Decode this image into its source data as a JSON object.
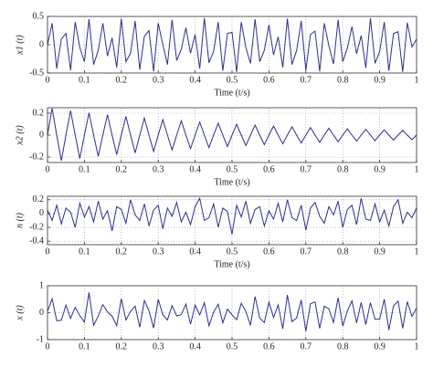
{
  "chart_data": [
    {
      "type": "line",
      "ylabel": "x1 (t)",
      "xlabel": "Time (t/s)",
      "color": "#2e2e8f",
      "grid": true,
      "xlim": [
        0,
        1
      ],
      "xticks": [
        0,
        0.1,
        0.2,
        0.3,
        0.4,
        0.5,
        0.6,
        0.7,
        0.8,
        0.9,
        1
      ],
      "ylim": [
        -0.5,
        0.5
      ],
      "yticks": [
        -0.5,
        0,
        0.5
      ],
      "x": [
        0,
        0.0125,
        0.025,
        0.0375,
        0.05,
        0.0625,
        0.075,
        0.0875,
        0.1,
        0.1125,
        0.125,
        0.1375,
        0.15,
        0.1625,
        0.175,
        0.1875,
        0.2,
        0.2125,
        0.225,
        0.2375,
        0.25,
        0.2625,
        0.275,
        0.2875,
        0.3,
        0.3125,
        0.325,
        0.3375,
        0.35,
        0.3625,
        0.375,
        0.3875,
        0.4,
        0.4125,
        0.425,
        0.4375,
        0.45,
        0.4625,
        0.475,
        0.4875,
        0.5,
        0.5125,
        0.525,
        0.5375,
        0.55,
        0.5625,
        0.575,
        0.5875,
        0.6,
        0.6125,
        0.625,
        0.6375,
        0.65,
        0.6625,
        0.675,
        0.6875,
        0.7,
        0.7125,
        0.725,
        0.7375,
        0.75,
        0.7625,
        0.775,
        0.7875,
        0.8,
        0.8125,
        0.825,
        0.8375,
        0.85,
        0.8625,
        0.875,
        0.8875,
        0.9,
        0.9125,
        0.925,
        0.9375,
        0.95,
        0.9625,
        0.975,
        0.9875,
        1
      ],
      "values": [
        0,
        0.38,
        -0.42,
        0.1,
        0.2,
        -0.45,
        0.4,
        -0.05,
        -0.3,
        0.45,
        -0.35,
        -0.1,
        0.38,
        -0.2,
        0.12,
        -0.4,
        0.46,
        -0.3,
        -0.15,
        0.42,
        -0.44,
        0.15,
        0.25,
        -0.47,
        0.38,
        0,
        -0.35,
        0.44,
        -0.28,
        -0.08,
        0.3,
        -0.15,
        0.18,
        -0.42,
        0.47,
        -0.32,
        -0.12,
        0.4,
        -0.46,
        0.2,
        0.22,
        -0.48,
        0.4,
        -0.05,
        -0.33,
        0.45,
        -0.3,
        -0.1,
        0.35,
        -0.18,
        0.14,
        -0.4,
        0.46,
        -0.35,
        -0.1,
        0.42,
        -0.45,
        0.18,
        0.24,
        -0.47,
        0.38,
        -0.02,
        -0.34,
        0.44,
        -0.3,
        -0.06,
        0.32,
        -0.16,
        0.16,
        -0.41,
        0.47,
        -0.33,
        -0.12,
        0.4,
        -0.46,
        0.2,
        0.23,
        -0.48,
        0.39,
        -0.04,
        0.1
      ]
    },
    {
      "type": "line",
      "ylabel": "x2 (t)",
      "xlabel": "Time (t/s)",
      "color": "#2e2e8f",
      "grid": true,
      "xlim": [
        0,
        1
      ],
      "xticks": [
        0,
        0.1,
        0.2,
        0.3,
        0.4,
        0.5,
        0.6,
        0.7,
        0.8,
        0.9,
        1
      ],
      "ylim": [
        -0.25,
        0.25
      ],
      "yticks": [
        -0.2,
        0,
        0.2
      ],
      "x": [
        0,
        0.0125,
        0.025,
        0.0375,
        0.05,
        0.0625,
        0.075,
        0.0875,
        0.1,
        0.1125,
        0.125,
        0.1375,
        0.15,
        0.1625,
        0.175,
        0.1875,
        0.2,
        0.2125,
        0.225,
        0.2375,
        0.25,
        0.2625,
        0.275,
        0.2875,
        0.3,
        0.3125,
        0.325,
        0.3375,
        0.35,
        0.3625,
        0.375,
        0.3875,
        0.4,
        0.4125,
        0.425,
        0.4375,
        0.45,
        0.4625,
        0.475,
        0.4875,
        0.5,
        0.5125,
        0.525,
        0.5375,
        0.55,
        0.5625,
        0.575,
        0.5875,
        0.6,
        0.6125,
        0.625,
        0.6375,
        0.65,
        0.6625,
        0.675,
        0.6875,
        0.7,
        0.7125,
        0.725,
        0.7375,
        0.75,
        0.7625,
        0.775,
        0.7875,
        0.8,
        0.8125,
        0.825,
        0.8375,
        0.85,
        0.8625,
        0.875,
        0.8875,
        0.9,
        0.9125,
        0.925,
        0.9375,
        0.95,
        0.9625,
        0.975,
        0.9875,
        1
      ],
      "values": [
        0,
        0.244,
        0,
        -0.234,
        0,
        0.223,
        0,
        -0.214,
        0,
        0.204,
        0,
        -0.195,
        0,
        0.187,
        0,
        -0.178,
        0,
        0.171,
        0,
        -0.163,
        0,
        0.156,
        0,
        -0.149,
        0,
        0.142,
        0,
        -0.136,
        0,
        0.13,
        0,
        -0.124,
        0,
        0.119,
        0,
        -0.114,
        0,
        0.109,
        0,
        -0.104,
        0,
        0.099,
        0,
        -0.095,
        0,
        0.091,
        0,
        -0.087,
        0,
        0.083,
        0,
        -0.079,
        0,
        0.076,
        0,
        -0.072,
        0,
        0.069,
        0,
        -0.066,
        0,
        0.063,
        0,
        -0.061,
        0,
        0.058,
        0,
        -0.055,
        0,
        0.053,
        0,
        -0.051,
        0,
        0.048,
        0,
        -0.046,
        0,
        0.044,
        0,
        -0.042,
        0
      ]
    },
    {
      "type": "line",
      "ylabel": "n (t)",
      "xlabel": "Time (t/s)",
      "color": "#2e2e8f",
      "grid": true,
      "xlim": [
        0,
        1
      ],
      "xticks": [
        0,
        0.1,
        0.2,
        0.3,
        0.4,
        0.5,
        0.6,
        0.7,
        0.8,
        0.9,
        1
      ],
      "ylim": [
        -0.45,
        0.25
      ],
      "yticks": [
        -0.4,
        -0.2,
        0,
        0.2
      ],
      "x": [
        0,
        0.0125,
        0.025,
        0.0375,
        0.05,
        0.0625,
        0.075,
        0.0875,
        0.1,
        0.1125,
        0.125,
        0.1375,
        0.15,
        0.1625,
        0.175,
        0.1875,
        0.2,
        0.2125,
        0.225,
        0.2375,
        0.25,
        0.2625,
        0.275,
        0.2875,
        0.3,
        0.3125,
        0.325,
        0.3375,
        0.35,
        0.3625,
        0.375,
        0.3875,
        0.4,
        0.4125,
        0.425,
        0.4375,
        0.45,
        0.4625,
        0.475,
        0.4875,
        0.5,
        0.5125,
        0.525,
        0.5375,
        0.55,
        0.5625,
        0.575,
        0.5875,
        0.6,
        0.6125,
        0.625,
        0.6375,
        0.65,
        0.6625,
        0.675,
        0.6875,
        0.7,
        0.7125,
        0.725,
        0.7375,
        0.75,
        0.7625,
        0.775,
        0.7875,
        0.8,
        0.8125,
        0.825,
        0.8375,
        0.85,
        0.8625,
        0.875,
        0.8875,
        0.9,
        0.9125,
        0.925,
        0.9375,
        0.95,
        0.9625,
        0.975,
        0.9875,
        1
      ],
      "values": [
        0.05,
        -0.1,
        0.12,
        -0.15,
        0.08,
        0.02,
        -0.2,
        0.15,
        -0.05,
        0.1,
        -0.12,
        0.18,
        -0.08,
        0.04,
        -0.25,
        0.1,
        0.06,
        -0.14,
        0.2,
        -0.02,
        -0.1,
        0.14,
        -0.18,
        0.05,
        0.12,
        -0.22,
        0.08,
        -0.04,
        0.16,
        -0.12,
        0.02,
        -0.16,
        0.1,
        0.22,
        -0.1,
        -0.06,
        0.14,
        -0.2,
        0.08,
        0.03,
        -0.3,
        0.12,
        -0.05,
        0.18,
        -0.14,
        0.06,
        0.1,
        -0.18,
        0.04,
        -0.08,
        0.15,
        -0.12,
        0.2,
        -0.06,
        -0.1,
        0.12,
        -0.24,
        0.08,
        0.16,
        -0.04,
        -0.14,
        0.1,
        -0.02,
        0.18,
        -0.2,
        0.06,
        0.12,
        -0.16,
        0.22,
        -0.08,
        -0.1,
        0.14,
        -0.12,
        0.05,
        -0.18,
        0.1,
        0.2,
        -0.14,
        0.02,
        -0.06,
        0.08
      ]
    },
    {
      "type": "line",
      "ylabel": "x (t)",
      "color": "#2e2e8f",
      "grid": true,
      "xlim": [
        0,
        1
      ],
      "xticks": [
        0,
        0.1,
        0.2,
        0.3,
        0.4,
        0.5,
        0.6,
        0.7,
        0.8,
        0.9,
        1
      ],
      "ylim": [
        -1,
        1
      ],
      "yticks": [
        -1,
        0,
        1
      ],
      "x": [
        0,
        0.0125,
        0.025,
        0.0375,
        0.05,
        0.0625,
        0.075,
        0.0875,
        0.1,
        0.1125,
        0.125,
        0.1375,
        0.15,
        0.1625,
        0.175,
        0.1875,
        0.2,
        0.2125,
        0.225,
        0.2375,
        0.25,
        0.2625,
        0.275,
        0.2875,
        0.3,
        0.3125,
        0.325,
        0.3375,
        0.35,
        0.3625,
        0.375,
        0.3875,
        0.4,
        0.4125,
        0.425,
        0.4375,
        0.45,
        0.4625,
        0.475,
        0.4875,
        0.5,
        0.5125,
        0.525,
        0.5375,
        0.55,
        0.5625,
        0.575,
        0.5875,
        0.6,
        0.6125,
        0.625,
        0.6375,
        0.65,
        0.6625,
        0.675,
        0.6875,
        0.7,
        0.7125,
        0.725,
        0.7375,
        0.75,
        0.7625,
        0.775,
        0.7875,
        0.8,
        0.8125,
        0.825,
        0.8375,
        0.85,
        0.8625,
        0.875,
        0.8875,
        0.9,
        0.9125,
        0.925,
        0.9375,
        0.95,
        0.9625,
        0.975,
        0.9875,
        1
      ],
      "values": [
        0.05,
        0.52,
        -0.3,
        -0.28,
        0.28,
        -0.21,
        0.2,
        -0.11,
        -0.35,
        0.75,
        -0.47,
        -0.12,
        0.3,
        0.03,
        -0.13,
        -0.48,
        0.52,
        -0.27,
        0.05,
        0.24,
        -0.54,
        0.45,
        0.07,
        -0.57,
        0.5,
        -0.08,
        -0.27,
        0.26,
        -0.12,
        -0.07,
        0.32,
        -0.43,
        0.28,
        -0.08,
        0.37,
        -0.49,
        0.02,
        0.31,
        -0.38,
        0.13,
        -0.08,
        -0.26,
        0.35,
        0.04,
        -0.47,
        0.6,
        -0.2,
        -0.37,
        0.39,
        -0.18,
        0.29,
        -0.6,
        0.66,
        -0.33,
        -0.2,
        0.47,
        -0.69,
        0.33,
        0.4,
        -0.58,
        0.24,
        0.14,
        -0.36,
        0.56,
        -0.5,
        0.06,
        0.44,
        -0.38,
        0.38,
        -0.44,
        0.37,
        -0.24,
        -0.24,
        0.5,
        -0.64,
        0.25,
        0.43,
        -0.58,
        0.41,
        -0.14,
        0.18
      ]
    }
  ]
}
